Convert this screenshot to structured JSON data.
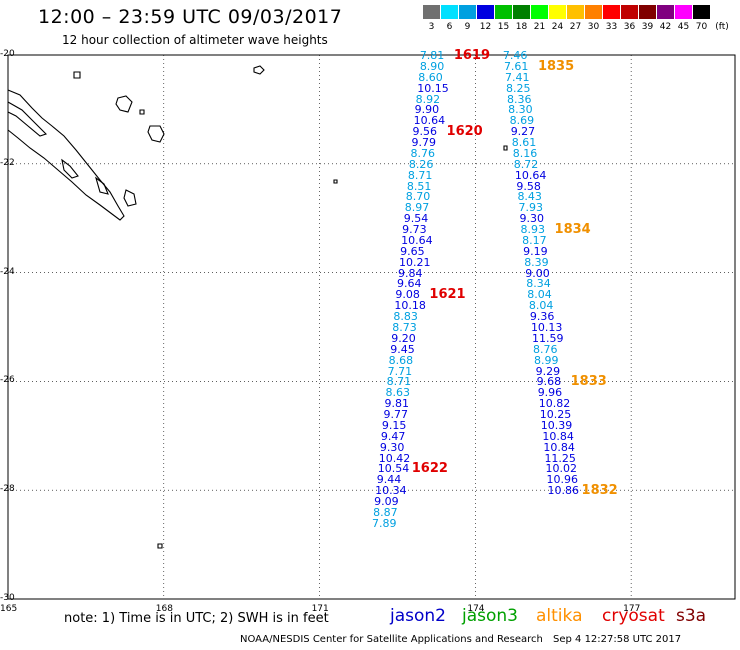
{
  "header": {
    "title": "12:00 – 23:59 UTC 09/03/2017",
    "subtitle": "12 hour collection of altimeter wave heights"
  },
  "color_scale": {
    "unit": "(ft)",
    "bins": [
      {
        "label": "3",
        "color": "#707070"
      },
      {
        "label": "6",
        "color": "#00e0ff"
      },
      {
        "label": "9",
        "color": "#00a0e0"
      },
      {
        "label": "12",
        "color": "#0000e0"
      },
      {
        "label": "15",
        "color": "#00c000"
      },
      {
        "label": "18",
        "color": "#008000"
      },
      {
        "label": "21",
        "color": "#00ff00"
      },
      {
        "label": "24",
        "color": "#ffff00"
      },
      {
        "label": "27",
        "color": "#ffc000"
      },
      {
        "label": "30",
        "color": "#ff8000"
      },
      {
        "label": "33",
        "color": "#ff0000"
      },
      {
        "label": "36",
        "color": "#c00000"
      },
      {
        "label": "39",
        "color": "#800000"
      },
      {
        "label": "42",
        "color": "#800080"
      },
      {
        "label": "45",
        "color": "#ff00ff"
      },
      {
        "label": "70",
        "color": "#000000"
      }
    ]
  },
  "axes": {
    "lat_ticks": [
      "-20",
      "-22",
      "-24",
      "-26",
      "-28",
      "-30"
    ],
    "lon_ticks": [
      "165",
      "168",
      "171",
      "174",
      "177"
    ],
    "lat_range": [
      -30,
      -20
    ],
    "lon_range": [
      165,
      179
    ]
  },
  "colors": {
    "jason2": "#0000c8",
    "jason3": "#00a000",
    "altika": "#ff9000",
    "cryosat": "#e00000",
    "s3a": "#800000",
    "swh_6_9": "#00a0e0",
    "swh_9_12": "#0000e0",
    "pass_red": "#e00000",
    "pass_orange": "#f09000"
  },
  "tracks": [
    {
      "satellite": "jason2",
      "points": [
        {
          "lat": -20.0,
          "lon": 173.2,
          "swh": 7.81
        },
        {
          "lat": -20.2,
          "lon": 173.2,
          "swh": 8.9
        },
        {
          "lat": -20.4,
          "lon": 173.17,
          "swh": 8.6
        },
        {
          "lat": -20.6,
          "lon": 173.15,
          "swh": 10.15
        },
        {
          "lat": -20.8,
          "lon": 173.12,
          "swh": 8.92
        },
        {
          "lat": -21.0,
          "lon": 173.1,
          "swh": 9.9
        },
        {
          "lat": -21.2,
          "lon": 173.08,
          "swh": 10.64
        },
        {
          "lat": -21.4,
          "lon": 173.06,
          "swh": 9.56
        },
        {
          "lat": -21.6,
          "lon": 173.04,
          "swh": 9.79
        },
        {
          "lat": -21.8,
          "lon": 173.02,
          "swh": 8.76
        },
        {
          "lat": -22.0,
          "lon": 172.99,
          "swh": 8.26
        },
        {
          "lat": -22.2,
          "lon": 172.97,
          "swh": 8.71
        },
        {
          "lat": -22.4,
          "lon": 172.95,
          "swh": 8.51
        },
        {
          "lat": -22.6,
          "lon": 172.93,
          "swh": 8.7
        },
        {
          "lat": -22.8,
          "lon": 172.91,
          "swh": 8.97
        },
        {
          "lat": -23.0,
          "lon": 172.89,
          "swh": 9.54
        },
        {
          "lat": -23.2,
          "lon": 172.86,
          "swh": 9.73
        },
        {
          "lat": -23.4,
          "lon": 172.84,
          "swh": 10.64
        },
        {
          "lat": -23.6,
          "lon": 172.82,
          "swh": 9.65
        },
        {
          "lat": -23.8,
          "lon": 172.8,
          "swh": 10.21
        },
        {
          "lat": -24.0,
          "lon": 172.78,
          "swh": 9.84
        },
        {
          "lat": -24.2,
          "lon": 172.76,
          "swh": 9.64
        },
        {
          "lat": -24.4,
          "lon": 172.73,
          "swh": 9.08
        },
        {
          "lat": -24.6,
          "lon": 172.71,
          "swh": 10.18
        },
        {
          "lat": -24.8,
          "lon": 172.69,
          "swh": 8.83
        },
        {
          "lat": -25.0,
          "lon": 172.67,
          "swh": 8.73
        },
        {
          "lat": -25.2,
          "lon": 172.65,
          "swh": 9.2
        },
        {
          "lat": -25.4,
          "lon": 172.63,
          "swh": 9.45
        },
        {
          "lat": -25.6,
          "lon": 172.6,
          "swh": 8.68
        },
        {
          "lat": -25.8,
          "lon": 172.58,
          "swh": 7.71
        },
        {
          "lat": -26.0,
          "lon": 172.56,
          "swh": 8.71
        },
        {
          "lat": -26.2,
          "lon": 172.54,
          "swh": 8.63
        },
        {
          "lat": -26.4,
          "lon": 172.52,
          "swh": 9.81
        },
        {
          "lat": -26.6,
          "lon": 172.5,
          "swh": 9.77
        },
        {
          "lat": -26.8,
          "lon": 172.47,
          "swh": 9.15
        },
        {
          "lat": -27.0,
          "lon": 172.45,
          "swh": 9.47
        },
        {
          "lat": -27.2,
          "lon": 172.43,
          "swh": 9.3
        },
        {
          "lat": -27.4,
          "lon": 172.41,
          "swh": 10.42
        },
        {
          "lat": -27.6,
          "lon": 172.39,
          "swh": 10.54
        },
        {
          "lat": -27.8,
          "lon": 172.37,
          "swh": 9.44
        },
        {
          "lat": -28.0,
          "lon": 172.34,
          "swh": 10.34
        },
        {
          "lat": -28.2,
          "lon": 172.32,
          "swh": 9.09
        },
        {
          "lat": -28.4,
          "lon": 172.3,
          "swh": 8.87
        },
        {
          "lat": -28.6,
          "lon": 172.28,
          "swh": 7.89
        }
      ],
      "passes": [
        {
          "label": "1619",
          "at": 0,
          "color": "#e00000"
        },
        {
          "label": "1620",
          "at": 7,
          "color": "#e00000"
        },
        {
          "label": "1621",
          "at": 22,
          "color": "#e00000"
        },
        {
          "label": "1622",
          "at": 38,
          "color": "#e00000"
        }
      ]
    },
    {
      "satellite": "jason2",
      "points": [
        {
          "lat": -20.0,
          "lon": 174.8,
          "swh": 7.46
        },
        {
          "lat": -20.2,
          "lon": 174.82,
          "swh": 7.61
        },
        {
          "lat": -20.4,
          "lon": 174.84,
          "swh": 7.41
        },
        {
          "lat": -20.6,
          "lon": 174.86,
          "swh": 8.25
        },
        {
          "lat": -20.8,
          "lon": 174.88,
          "swh": 8.36
        },
        {
          "lat": -21.0,
          "lon": 174.9,
          "swh": 8.3
        },
        {
          "lat": -21.2,
          "lon": 174.93,
          "swh": 8.69
        },
        {
          "lat": -21.4,
          "lon": 174.95,
          "swh": 9.27
        },
        {
          "lat": -21.6,
          "lon": 174.97,
          "swh": 8.61
        },
        {
          "lat": -21.8,
          "lon": 174.99,
          "swh": 8.16
        },
        {
          "lat": -22.0,
          "lon": 175.01,
          "swh": 8.72
        },
        {
          "lat": -22.2,
          "lon": 175.03,
          "swh": 10.64
        },
        {
          "lat": -22.4,
          "lon": 175.06,
          "swh": 9.58
        },
        {
          "lat": -22.6,
          "lon": 175.08,
          "swh": 8.43
        },
        {
          "lat": -22.8,
          "lon": 175.1,
          "swh": 7.93
        },
        {
          "lat": -23.0,
          "lon": 175.12,
          "swh": 9.3
        },
        {
          "lat": -23.2,
          "lon": 175.14,
          "swh": 8.93
        },
        {
          "lat": -23.4,
          "lon": 175.17,
          "swh": 8.17
        },
        {
          "lat": -23.6,
          "lon": 175.19,
          "swh": 9.19
        },
        {
          "lat": -23.8,
          "lon": 175.21,
          "swh": 8.39
        },
        {
          "lat": -24.0,
          "lon": 175.23,
          "swh": 9.0
        },
        {
          "lat": -24.2,
          "lon": 175.25,
          "swh": 8.34
        },
        {
          "lat": -24.4,
          "lon": 175.27,
          "swh": 8.04
        },
        {
          "lat": -24.6,
          "lon": 175.3,
          "swh": 8.04
        },
        {
          "lat": -24.8,
          "lon": 175.32,
          "swh": 9.36
        },
        {
          "lat": -25.0,
          "lon": 175.34,
          "swh": 10.13
        },
        {
          "lat": -25.2,
          "lon": 175.36,
          "swh": 11.59
        },
        {
          "lat": -25.4,
          "lon": 175.38,
          "swh": 8.76
        },
        {
          "lat": -25.6,
          "lon": 175.4,
          "swh": 8.99
        },
        {
          "lat": -25.8,
          "lon": 175.43,
          "swh": 9.29
        },
        {
          "lat": -26.0,
          "lon": 175.45,
          "swh": 9.68
        },
        {
          "lat": -26.2,
          "lon": 175.47,
          "swh": 9.96
        },
        {
          "lat": -26.4,
          "lon": 175.49,
          "swh": 10.82
        },
        {
          "lat": -26.6,
          "lon": 175.51,
          "swh": 10.25
        },
        {
          "lat": -26.8,
          "lon": 175.53,
          "swh": 10.39
        },
        {
          "lat": -27.0,
          "lon": 175.56,
          "swh": 10.84
        },
        {
          "lat": -27.2,
          "lon": 175.58,
          "swh": 10.84
        },
        {
          "lat": -27.4,
          "lon": 175.6,
          "swh": 11.25
        },
        {
          "lat": -27.6,
          "lon": 175.62,
          "swh": 10.02
        },
        {
          "lat": -27.8,
          "lon": 175.64,
          "swh": 10.96
        },
        {
          "lat": -28.0,
          "lon": 175.66,
          "swh": 10.86
        }
      ],
      "passes": [
        {
          "label": "1835",
          "at": 1,
          "color": "#f09000"
        },
        {
          "label": "1834",
          "at": 16,
          "color": "#f09000"
        },
        {
          "label": "1833",
          "at": 30,
          "color": "#f09000"
        },
        {
          "label": "1832",
          "at": 40,
          "color": "#f09000"
        }
      ]
    }
  ],
  "footer": {
    "note": "note: 1) Time is in UTC; 2) SWH is in feet",
    "legend": [
      {
        "name": "jason2",
        "color": "#0000c8"
      },
      {
        "name": "jason3",
        "color": "#00a000"
      },
      {
        "name": "altika",
        "color": "#ff9000"
      },
      {
        "name": "cryosat",
        "color": "#e00000"
      },
      {
        "name": "s3a",
        "color": "#800000"
      }
    ],
    "credit": "NOAA/NESDIS Center for Satellite Applications and Research",
    "timestamp": "Sep  4 12:27:58 UTC 2017"
  }
}
